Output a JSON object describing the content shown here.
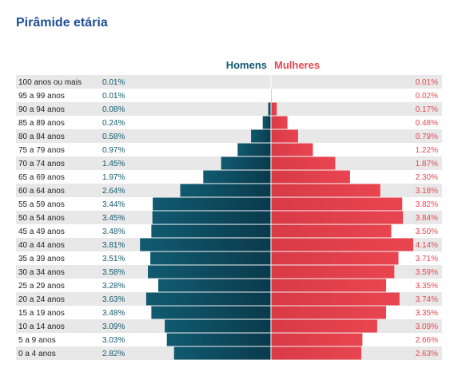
{
  "title": "Pirâmide etária",
  "legend": {
    "men": "Homens",
    "women": "Mulheres"
  },
  "colors": {
    "men": "#115a70",
    "women": "#e84550",
    "stripe": "#e8e8e8",
    "title": "#1f4e96"
  },
  "chart_data": {
    "type": "bar",
    "orientation": "horizontal-pyramid",
    "categories": [
      "100 anos ou mais",
      "95 a 99 anos",
      "90 a 94 anos",
      "85 a 89 anos",
      "80 a 84 anos",
      "75 a 79 anos",
      "70 a 74 anos",
      "65 a 69 anos",
      "60 a 64 anos",
      "55 a 59 anos",
      "50 a 54 anos",
      "45 a 49 anos",
      "40 a 44 anos",
      "35 a 39 anos",
      "30 a 34 anos",
      "25 a 29 anos",
      "20 a 24 anos",
      "15 a 19 anos",
      "10 a 14 anos",
      "5 a 9 anos",
      "0 a 4 anos"
    ],
    "series": [
      {
        "name": "Homens",
        "values": [
          0.01,
          0.01,
          0.08,
          0.24,
          0.58,
          0.97,
          1.45,
          1.97,
          2.64,
          3.44,
          3.45,
          3.48,
          3.81,
          3.51,
          3.58,
          3.28,
          3.63,
          3.48,
          3.09,
          3.03,
          2.82
        ],
        "labels": [
          "0.01%",
          "0.01%",
          "0.08%",
          "0.24%",
          "0.58%",
          "0.97%",
          "1.45%",
          "1.97%",
          "2.64%",
          "3.44%",
          "3.45%",
          "3.48%",
          "3.81%",
          "3.51%",
          "3.58%",
          "3.28%",
          "3.63%",
          "3.48%",
          "3.09%",
          "3.03%",
          "2.82%"
        ]
      },
      {
        "name": "Mulheres",
        "values": [
          0.01,
          0.02,
          0.17,
          0.48,
          0.79,
          1.22,
          1.87,
          2.3,
          3.18,
          3.82,
          3.84,
          3.5,
          4.14,
          3.71,
          3.59,
          3.35,
          3.74,
          3.35,
          3.09,
          2.66,
          2.63
        ],
        "labels": [
          "0.01%",
          "0.02%",
          "0.17%",
          "0.48%",
          "0.79%",
          "1.22%",
          "1.87%",
          "2.30%",
          "3.18%",
          "3.82%",
          "3.84%",
          "3.50%",
          "4.14%",
          "3.71%",
          "3.59%",
          "3.35%",
          "3.74%",
          "3.35%",
          "3.09%",
          "2.66%",
          "2.63%"
        ]
      }
    ]
  }
}
